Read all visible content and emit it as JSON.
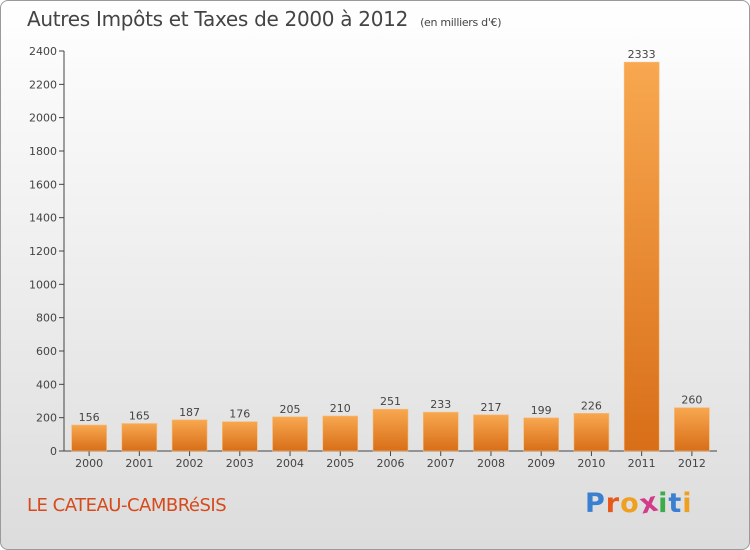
{
  "header": {
    "title": "Autres Impôts et Taxes de 2000 à 2012",
    "unit": "(en milliers d'€)"
  },
  "footer": {
    "commune": "LE CATEAU-CAMBRéSIS",
    "logo": {
      "letters": [
        "P",
        "r",
        "o",
        "x",
        "i",
        "t",
        "i"
      ],
      "colors": [
        "#3a7fd0",
        "#e8581c",
        "#f0a020",
        "#d23b8c",
        "#3cac4a",
        "#3a7fd0",
        "#f0a020"
      ]
    }
  },
  "chart_data": {
    "type": "bar",
    "categories": [
      "2000",
      "2001",
      "2002",
      "2003",
      "2004",
      "2005",
      "2006",
      "2007",
      "2008",
      "2009",
      "2010",
      "2011",
      "2012"
    ],
    "values": [
      156,
      165,
      187,
      176,
      205,
      210,
      251,
      233,
      217,
      199,
      226,
      2333,
      260
    ],
    "ylim": [
      0,
      2400
    ],
    "yticks": [
      0,
      200,
      400,
      600,
      800,
      1000,
      1200,
      1400,
      1600,
      1800,
      2000,
      2200,
      2400
    ],
    "grid": false,
    "colors": {
      "bar_light": "#f8a850",
      "bar_dark": "#d86e18",
      "axis": "#444444",
      "text": "#444444"
    }
  }
}
